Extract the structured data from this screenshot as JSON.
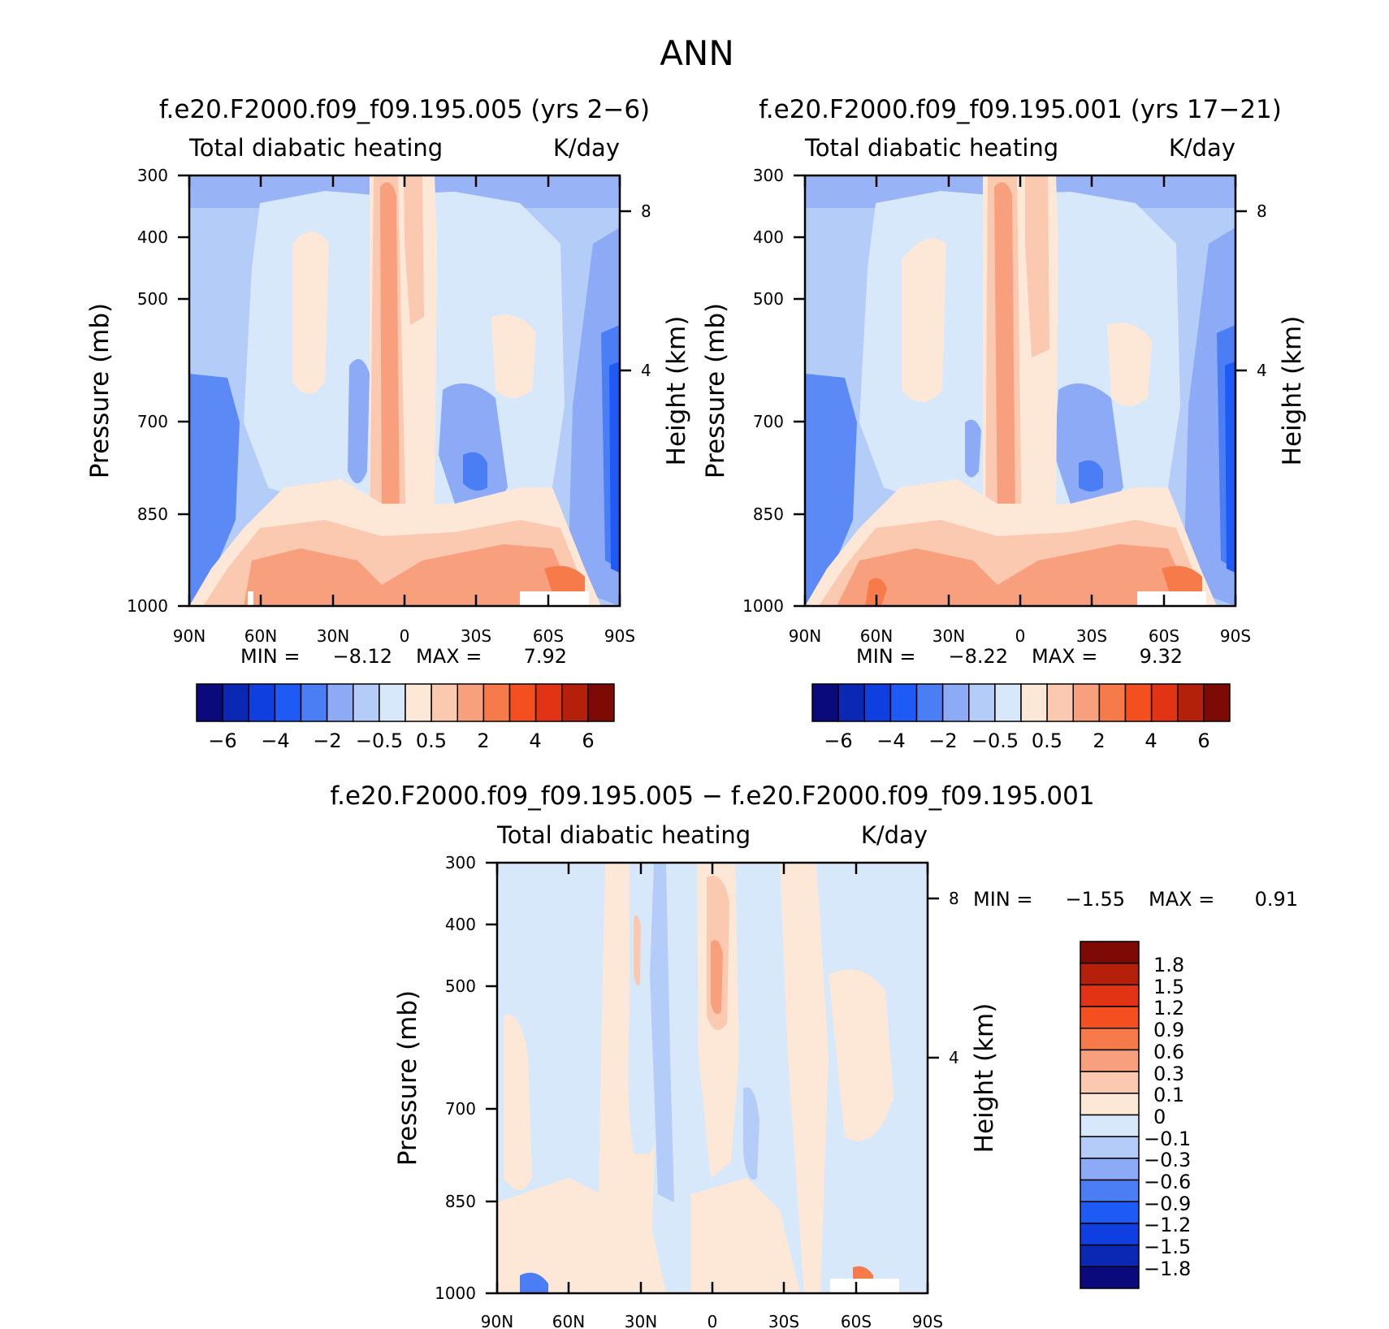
{
  "figure_title": "ANN",
  "chart_data": [
    {
      "type": "heatmap",
      "panel": "left",
      "title": "f.e20.F2000.f09_f09.195.005 (yrs 2-6)",
      "variable": "Total diabatic heating",
      "units": "K/day",
      "xlabel": "",
      "ylabel": "Pressure (mb)",
      "ylabel_right": "Height (km)",
      "x_ticks": [
        "90N",
        "60N",
        "30N",
        "0",
        "30S",
        "60S",
        "90S"
      ],
      "y_ticks": [
        "300",
        "400",
        "500",
        "700",
        "850",
        "1000"
      ],
      "y2_ticks": [
        "8",
        "4"
      ],
      "ylim": [
        1000,
        300
      ],
      "min_label": "MIN =",
      "min_value": "-8.12",
      "max_label": "MAX =",
      "max_value": "7.92",
      "colorbar_labels": [
        "-6",
        "-4",
        "-2",
        "-0.5",
        "0.5",
        "2",
        "4",
        "6"
      ]
    },
    {
      "type": "heatmap",
      "panel": "right",
      "title": "f.e20.F2000.f09_f09.195.001 (yrs 17-21)",
      "variable": "Total diabatic heating",
      "units": "K/day",
      "xlabel": "",
      "ylabel": "Pressure (mb)",
      "ylabel_right": "Height (km)",
      "x_ticks": [
        "90N",
        "60N",
        "30N",
        "0",
        "30S",
        "60S",
        "90S"
      ],
      "y_ticks": [
        "300",
        "400",
        "500",
        "700",
        "850",
        "1000"
      ],
      "y2_ticks": [
        "8",
        "4"
      ],
      "ylim": [
        1000,
        300
      ],
      "min_label": "MIN =",
      "min_value": "-8.22",
      "max_label": "MAX =",
      "max_value": "9.32",
      "colorbar_labels": [
        "-6",
        "-4",
        "-2",
        "-0.5",
        "0.5",
        "2",
        "4",
        "6"
      ]
    },
    {
      "type": "heatmap",
      "panel": "difference",
      "title": "f.e20.F2000.f09_f09.195.005 - f.e20.F2000.f09_f09.195.001",
      "variable": "Total diabatic heating",
      "units": "K/day",
      "xlabel": "",
      "ylabel": "Pressure (mb)",
      "ylabel_right": "Height (km)",
      "x_ticks": [
        "90N",
        "60N",
        "30N",
        "0",
        "30S",
        "60S",
        "90S"
      ],
      "y_ticks": [
        "300",
        "400",
        "500",
        "700",
        "850",
        "1000"
      ],
      "y2_ticks": [
        "8",
        "4"
      ],
      "ylim": [
        1000,
        300
      ],
      "min_label": "MIN =",
      "min_value": "-1.55",
      "max_label": "MAX =",
      "max_value": "0.91",
      "colorbar_labels": [
        "1.8",
        "1.5",
        "1.2",
        "0.9",
        "0.6",
        "0.3",
        "0.1",
        "0",
        "-0.1",
        "-0.3",
        "-0.6",
        "-0.9",
        "-1.2",
        "-1.5",
        "-1.8"
      ]
    }
  ],
  "palette": {
    "full": [
      "#0a0a7d",
      "#0a28b4",
      "#0f3ee1",
      "#1e5af5",
      "#4b7df5",
      "#8caaf5",
      "#b4cdf8",
      "#d7e8fa",
      "#fde8d8",
      "#fbc8b0",
      "#f8a07d",
      "#f77a4a",
      "#f4501f",
      "#e23414",
      "#b4200a",
      "#7d0a05"
    ],
    "diff": [
      "#7d0a05",
      "#b4200a",
      "#e23414",
      "#f4501f",
      "#f77a4a",
      "#f8a07d",
      "#fbc8b0",
      "#fde8d8",
      "#d7e8fa",
      "#b4cdf8",
      "#8caaf5",
      "#4b7df5",
      "#1e5af5",
      "#0f3ee1",
      "#0a28b4",
      "#0a0a7d"
    ]
  }
}
